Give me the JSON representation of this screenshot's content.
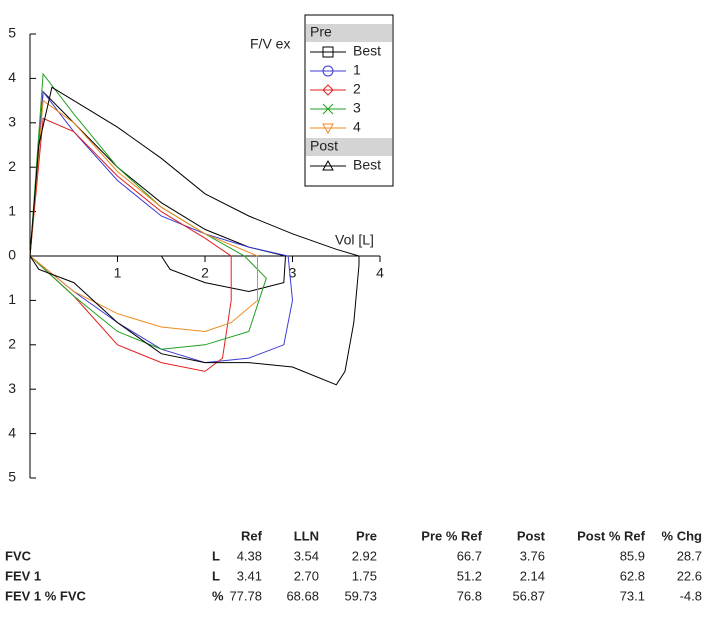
{
  "chart_data": {
    "type": "line",
    "axis_title": "F/V ex",
    "x_label": "Vol [L]",
    "xlim": [
      0,
      4
    ],
    "xticks": [
      1,
      2,
      3,
      4
    ],
    "ylim": [
      -5,
      5
    ],
    "yticks": [
      5,
      4,
      3,
      2,
      1,
      0,
      {
        "value": -1,
        "label": "1"
      },
      {
        "value": -2,
        "label": "2"
      },
      {
        "value": -3,
        "label": "3"
      },
      {
        "value": -4,
        "label": "4"
      },
      {
        "value": -5,
        "label": "5"
      }
    ],
    "legend": "top-right",
    "series": [
      {
        "group": "Pre",
        "name": "Best",
        "color": "#000000",
        "marker": "square",
        "x": [
          0,
          0.15,
          0.4,
          1,
          1.5,
          2,
          2.5,
          2.92,
          2.9,
          2.5,
          2,
          1.6,
          1.5
        ],
        "values": [
          0,
          3.7,
          3.2,
          2.0,
          1.2,
          0.6,
          0.2,
          0,
          -0.6,
          -0.8,
          -0.6,
          -0.3,
          0
        ]
      },
      {
        "group": "Pre",
        "name": "1",
        "color": "#3b3bd6",
        "marker": "circle",
        "x": [
          0,
          0.15,
          0.5,
          1,
          1.5,
          2,
          2.5,
          2.95,
          3.0,
          2.9,
          2.5,
          2,
          1.5,
          1,
          0.5,
          0
        ],
        "values": [
          0,
          3.7,
          2.8,
          1.7,
          0.9,
          0.5,
          0.2,
          0,
          -1.0,
          -2.0,
          -2.3,
          -2.4,
          -2.1,
          -1.5,
          -0.8,
          0
        ]
      },
      {
        "group": "Pre",
        "name": "2",
        "color": "#e02020",
        "marker": "diamond",
        "x": [
          0,
          0.15,
          0.5,
          1,
          1.5,
          2,
          2.3,
          2.3,
          2.2,
          2,
          1.5,
          1,
          0.5,
          0
        ],
        "values": [
          0,
          3.1,
          2.8,
          1.8,
          1.0,
          0.4,
          0,
          -1.0,
          -2.3,
          -2.6,
          -2.4,
          -2.0,
          -0.9,
          0
        ]
      },
      {
        "group": "Pre",
        "name": "3",
        "color": "#20a020",
        "marker": "x",
        "x": [
          0,
          0.15,
          0.5,
          1,
          1.5,
          2,
          2.45,
          2.7,
          2.5,
          2,
          1.5,
          1,
          0.5,
          0
        ],
        "values": [
          0,
          4.1,
          3.2,
          2.0,
          1.1,
          0.5,
          0,
          -0.5,
          -1.7,
          -2.0,
          -2.1,
          -1.7,
          -0.9,
          0
        ]
      },
      {
        "group": "Pre",
        "name": "4",
        "color": "#f08a20",
        "marker": "triangle-down",
        "x": [
          0,
          0.15,
          0.5,
          1,
          1.5,
          2,
          2.6,
          2.6,
          2.3,
          2,
          1.5,
          1,
          0.5,
          0
        ],
        "values": [
          0,
          3.5,
          3.0,
          1.9,
          1.1,
          0.5,
          0,
          -1.0,
          -1.5,
          -1.7,
          -1.6,
          -1.3,
          -0.8,
          0
        ]
      },
      {
        "group": "Post",
        "name": "Best",
        "color": "#000000",
        "marker": "triangle-up",
        "x": [
          0,
          0.1,
          0.25,
          0.5,
          1,
          1.5,
          2,
          2.5,
          3,
          3.5,
          3.76,
          3.76,
          3.7,
          3.6,
          3.5,
          3,
          2.5,
          2,
          1.5,
          1,
          0.5,
          0.1,
          0
        ],
        "values": [
          0,
          2.5,
          3.8,
          3.5,
          2.9,
          2.2,
          1.4,
          0.9,
          0.5,
          0.15,
          0,
          -0.2,
          -1.5,
          -2.6,
          -2.9,
          -2.5,
          -2.4,
          -2.4,
          -2.2,
          -1.5,
          -0.6,
          -0.3,
          0
        ]
      }
    ]
  },
  "table": {
    "header": [
      "Ref",
      "LLN",
      "Pre",
      "Pre % Ref",
      "Post",
      "Post % Ref",
      "% Chg"
    ],
    "rows": [
      [
        "FVC",
        "L",
        "4.38",
        "3.54",
        "2.92",
        "66.7",
        "3.76",
        "85.9",
        "28.7"
      ],
      [
        "FEV 1",
        "L",
        "3.41",
        "2.70",
        "1.75",
        "51.2",
        "2.14",
        "62.8",
        "22.6"
      ],
      [
        "FEV 1 % FVC",
        "%",
        "77.78",
        "68.68",
        "59.73",
        "76.8",
        "56.87",
        "73.1",
        "-4.8"
      ]
    ]
  }
}
